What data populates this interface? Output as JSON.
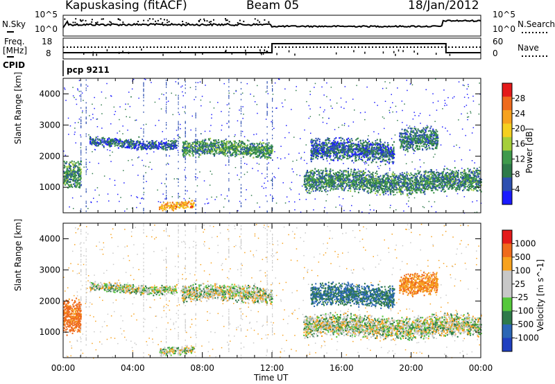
{
  "header": {
    "title": "Kapuskasing (fitACF)",
    "beam": "Beam 05",
    "date": "18/Jan/2012"
  },
  "noise_panel": {
    "left_label": "N.Sky",
    "right_label": "N.Search",
    "left_ticks": [
      "10^5",
      "10^0"
    ],
    "right_ticks": [
      "10^5",
      "10^0"
    ]
  },
  "freq_panel": {
    "left_label_1": "Freq.",
    "left_label_2": "[MHz]",
    "left_ticks": [
      "18",
      "8"
    ],
    "right_label": "Nave",
    "right_ticks": [
      "60",
      "0"
    ],
    "cpid_label": "CPID",
    "cpid_value": "pcp 9211",
    "freq_mhz": [
      {
        "from": 0,
        "to": 12,
        "value": 10.2
      },
      {
        "from": 12,
        "to": 22,
        "value": 11.5
      },
      {
        "from": 22,
        "to": 24,
        "value": 10.2
      }
    ]
  },
  "chart_data": [
    {
      "type": "heatmap",
      "name": "power",
      "ylabel": "Slant Range [km]",
      "xlabel": "",
      "xlim": [
        0,
        24
      ],
      "ylim": [
        180,
        4500
      ],
      "yticks": [
        1000,
        2000,
        3000,
        4000
      ],
      "colorbar": {
        "label": "Power [dB]",
        "ticks": [
          28,
          24,
          20,
          16,
          12,
          8,
          4
        ],
        "range": [
          0,
          30
        ],
        "colors": [
          "#1a1aff",
          "#2d4fb0",
          "#2e7a4a",
          "#3f9a4c",
          "#a5cf3a",
          "#f5d020",
          "#f7a21e",
          "#ef6b1d",
          "#e41a1a"
        ]
      },
      "features": [
        {
          "t0": 0.0,
          "t1": 1.0,
          "r0": 900,
          "r1": 1900,
          "level": 10
        },
        {
          "t0": 1.5,
          "t1": 6.5,
          "r0": 2250,
          "r1": 2600,
          "level": 6
        },
        {
          "t0": 6.8,
          "t1": 12.0,
          "r0": 1950,
          "r1": 2550,
          "level": 10
        },
        {
          "t0": 5.5,
          "t1": 7.5,
          "r0": 300,
          "r1": 600,
          "level": 22
        },
        {
          "t0": 13.8,
          "t1": 24.0,
          "r0": 800,
          "r1": 1600,
          "level": 9
        },
        {
          "t0": 14.2,
          "t1": 19.0,
          "r0": 1800,
          "r1": 2600,
          "level": 6
        },
        {
          "t0": 19.3,
          "t1": 21.5,
          "r0": 2200,
          "r1": 3000,
          "level": 8
        }
      ]
    },
    {
      "type": "heatmap",
      "name": "velocity",
      "ylabel": "Slant Range [km]",
      "xlabel": "Time UT",
      "xlim": [
        0,
        24
      ],
      "ylim": [
        180,
        4500
      ],
      "yticks": [
        1000,
        2000,
        3000,
        4000
      ],
      "xticks": [
        "00:00",
        "04:00",
        "08:00",
        "12:00",
        "16:00",
        "20:00",
        "00:00"
      ],
      "colorbar": {
        "label": "Velocity [m s^-1]",
        "ticks": [
          "1000",
          "500",
          "100",
          "25",
          "-25",
          "-100",
          "-500",
          "-1000"
        ],
        "colors": [
          "#1f3fc0",
          "#2b66b5",
          "#2e7a4a",
          "#55c83b",
          "#c8c8c8",
          "#c8c8c8",
          "#f7a21e",
          "#ef6b1d",
          "#e41a1a"
        ]
      },
      "features": [
        {
          "t0": 0.0,
          "t1": 1.0,
          "r0": 900,
          "r1": 2100,
          "velocity": -600
        },
        {
          "t0": 1.5,
          "t1": 6.5,
          "r0": 2250,
          "r1": 2600,
          "velocity": 0
        },
        {
          "t0": 6.8,
          "t1": 12.0,
          "r0": 1950,
          "r1": 2550,
          "velocity": 0
        },
        {
          "t0": 5.5,
          "t1": 7.5,
          "r0": 300,
          "r1": 600,
          "velocity": 0
        },
        {
          "t0": 13.8,
          "t1": 24.0,
          "r0": 800,
          "r1": 1600,
          "velocity": 0
        },
        {
          "t0": 14.2,
          "t1": 19.0,
          "r0": 1800,
          "r1": 2600,
          "velocity": 300
        },
        {
          "t0": 19.3,
          "t1": 21.5,
          "r0": 2200,
          "r1": 3000,
          "velocity": -500
        }
      ]
    }
  ]
}
